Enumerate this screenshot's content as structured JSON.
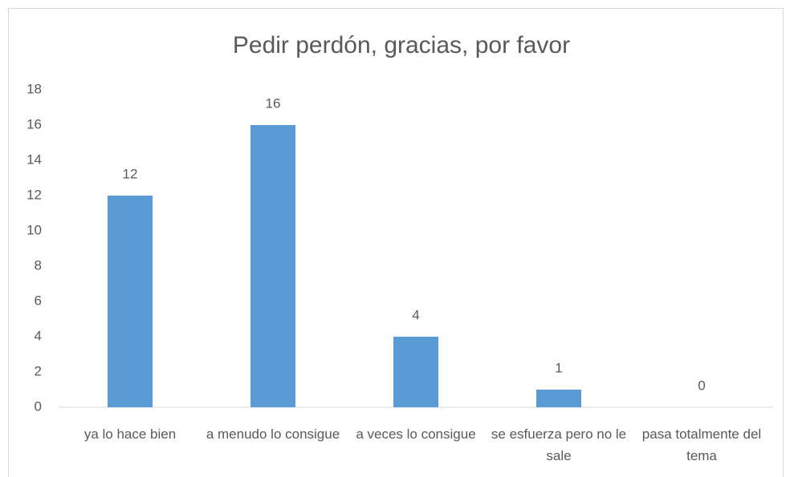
{
  "chart_data": {
    "type": "bar",
    "title": "Pedir perdón, gracias, por favor",
    "categories": [
      "ya lo hace bien",
      "a menudo lo consigue",
      "a veces lo consigue",
      "se esfuerza pero no le sale",
      "pasa totalmente del tema"
    ],
    "values": [
      12,
      16,
      4,
      1,
      0
    ],
    "color": "#5b9bd5",
    "ylim": [
      0,
      18
    ],
    "yticks": [
      0,
      2,
      4,
      6,
      8,
      10,
      12,
      14,
      16,
      18
    ],
    "grid": false
  }
}
